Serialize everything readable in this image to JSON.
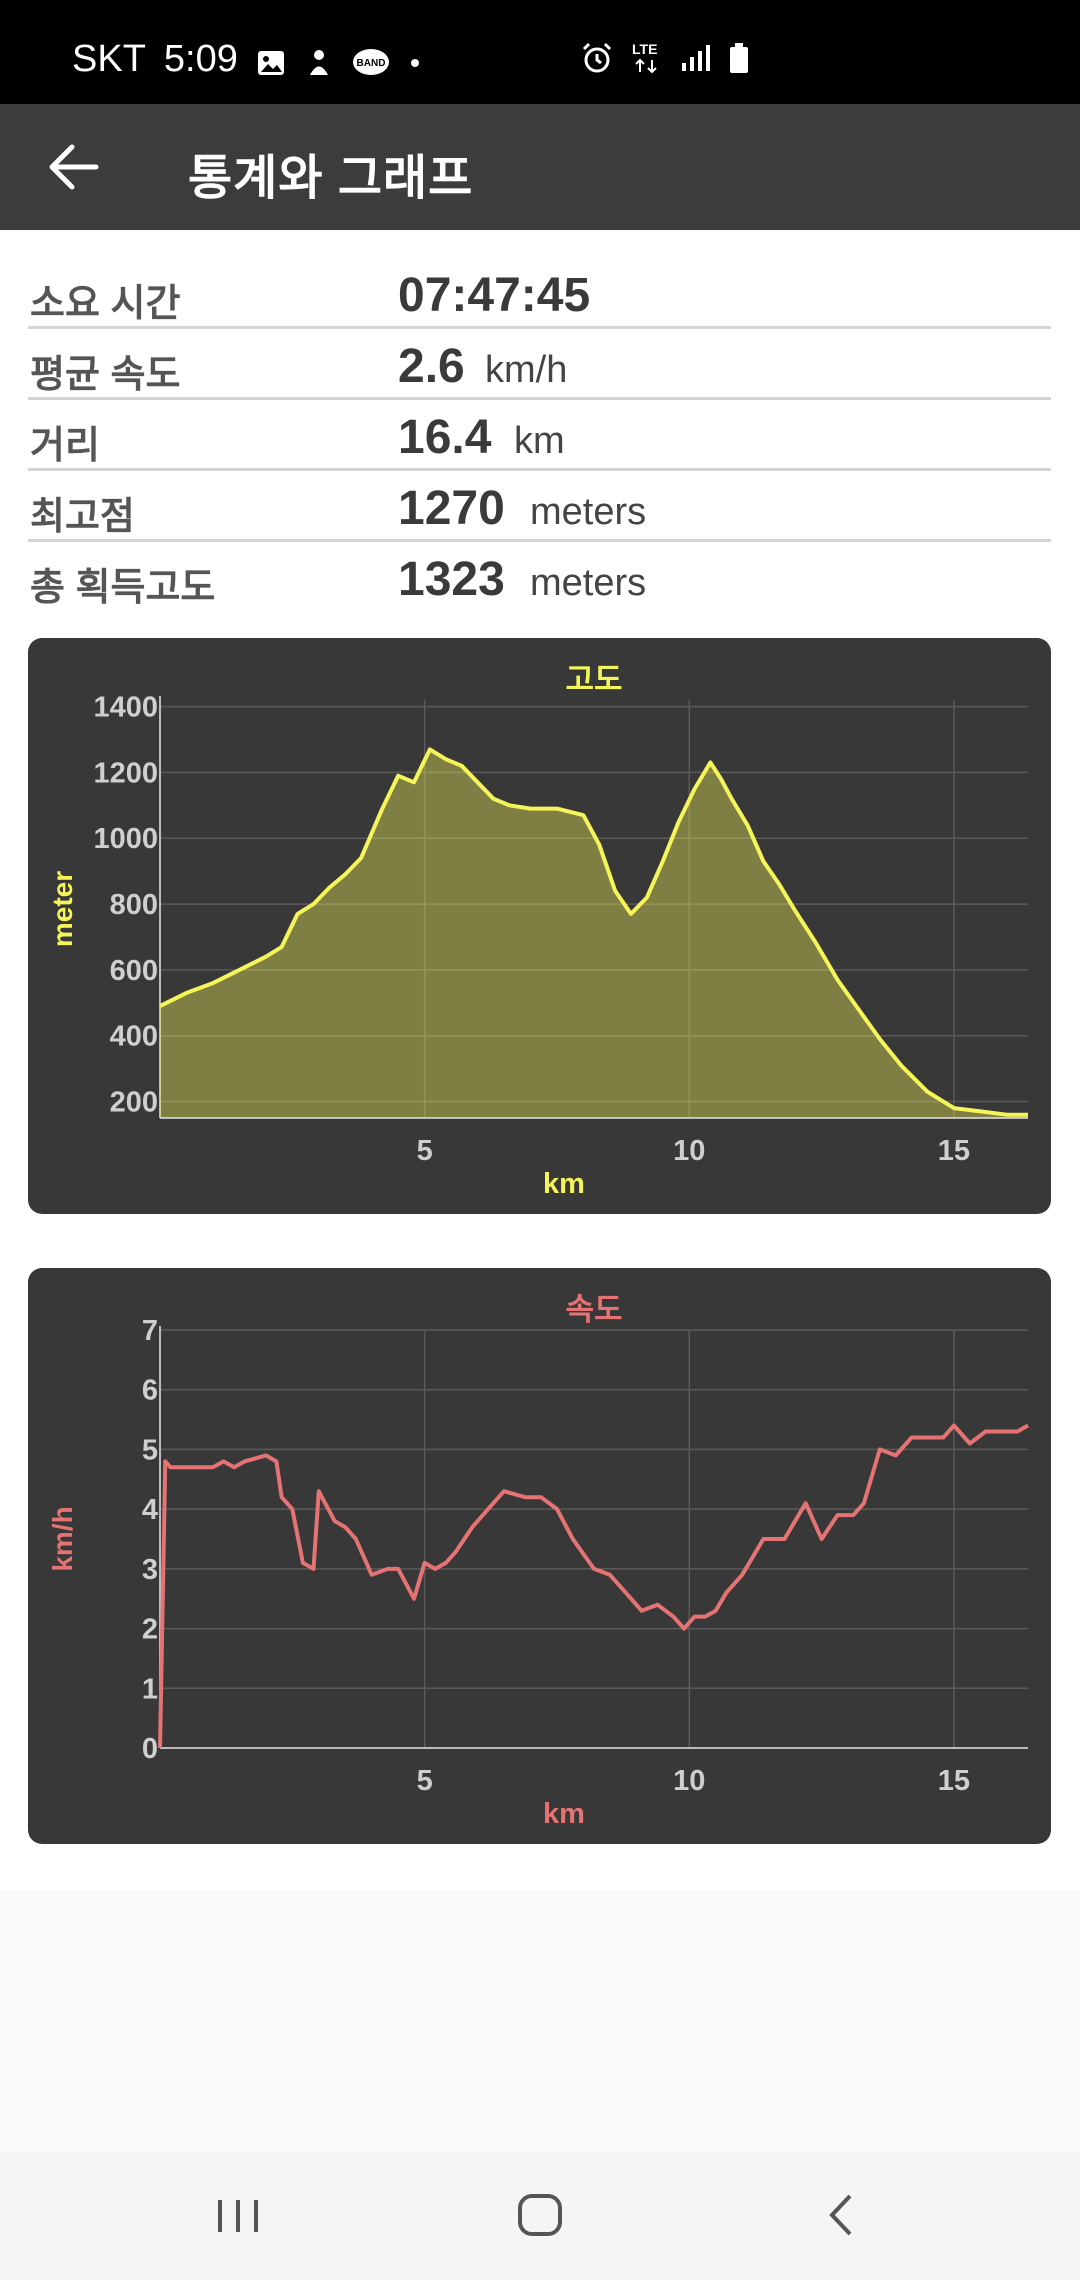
{
  "status_bar": {
    "carrier": "SKT",
    "time": "5:09",
    "icons_left": [
      "gallery-icon",
      "person-icon",
      "band-app-icon",
      "dot-icon"
    ],
    "icons_right": [
      "alarm-icon",
      "lte-icon",
      "signal-icon",
      "battery-icon"
    ]
  },
  "app_bar": {
    "title": "통계와 그래프",
    "back_icon": "arrow-left-icon"
  },
  "stats": [
    {
      "label": "소요 시간",
      "value": "07:47:45",
      "unit": ""
    },
    {
      "label": "평균 속도",
      "value": "2.6",
      "unit": "km/h"
    },
    {
      "label": "거리",
      "value": "16.4",
      "unit": "km"
    },
    {
      "label": "최고점",
      "value": "1270",
      "unit": "meters"
    },
    {
      "label": "총 획득고도",
      "value": "1323",
      "unit": "meters"
    }
  ],
  "colors": {
    "elevation": "#f5f55a",
    "speed": "#e57373",
    "card_bg": "#383838",
    "app_bar": "#3c3c3c"
  },
  "chart_data": [
    {
      "type": "area",
      "title": "고도",
      "xlabel": "km",
      "ylabel": "meter",
      "xlim": [
        0,
        16.4
      ],
      "ylim": [
        150,
        1420
      ],
      "x_ticks": [
        5,
        10,
        15
      ],
      "y_ticks": [
        200,
        400,
        600,
        800,
        1000,
        1200,
        1400
      ],
      "grid": true,
      "x": [
        0,
        0.5,
        1,
        1.5,
        2,
        2.3,
        2.6,
        2.9,
        3.2,
        3.5,
        3.8,
        4.2,
        4.5,
        4.8,
        5.1,
        5.4,
        5.7,
        6.0,
        6.3,
        6.6,
        7.0,
        7.5,
        8.0,
        8.3,
        8.6,
        8.9,
        9.2,
        9.5,
        9.8,
        10.1,
        10.4,
        10.6,
        10.8,
        11.1,
        11.4,
        11.7,
        12.0,
        12.4,
        12.8,
        13.2,
        13.6,
        14.0,
        14.5,
        15.0,
        15.5,
        16.0,
        16.4
      ],
      "y": [
        490,
        530,
        560,
        600,
        640,
        670,
        770,
        800,
        850,
        890,
        940,
        1090,
        1190,
        1170,
        1270,
        1240,
        1220,
        1170,
        1120,
        1100,
        1090,
        1090,
        1070,
        980,
        840,
        770,
        820,
        930,
        1050,
        1150,
        1230,
        1180,
        1120,
        1040,
        930,
        860,
        780,
        680,
        570,
        480,
        390,
        310,
        230,
        180,
        170,
        160,
        160
      ]
    },
    {
      "type": "line",
      "title": "속도",
      "xlabel": "km",
      "ylabel": "km/h",
      "xlim": [
        0,
        16.4
      ],
      "ylim": [
        0,
        7
      ],
      "x_ticks": [
        5,
        10,
        15
      ],
      "y_ticks": [
        0,
        1,
        2,
        3,
        4,
        5,
        6,
        7
      ],
      "grid": true,
      "x": [
        0,
        0.1,
        0.2,
        0.6,
        1.0,
        1.2,
        1.4,
        1.6,
        2.0,
        2.2,
        2.3,
        2.5,
        2.7,
        2.9,
        3.0,
        3.3,
        3.5,
        3.7,
        4.0,
        4.3,
        4.5,
        4.8,
        5.0,
        5.2,
        5.4,
        5.6,
        5.9,
        6.2,
        6.5,
        6.9,
        7.2,
        7.5,
        7.8,
        8.2,
        8.5,
        8.8,
        9.1,
        9.4,
        9.7,
        9.9,
        10.1,
        10.3,
        10.5,
        10.7,
        11.0,
        11.4,
        11.8,
        12.2,
        12.5,
        12.8,
        13.1,
        13.3,
        13.6,
        13.9,
        14.2,
        14.5,
        14.8,
        15.0,
        15.3,
        15.6,
        15.9,
        16.2,
        16.4
      ],
      "y": [
        0,
        4.8,
        4.7,
        4.7,
        4.7,
        4.8,
        4.7,
        4.8,
        4.9,
        4.8,
        4.2,
        4.0,
        3.1,
        3.0,
        4.3,
        3.8,
        3.7,
        3.5,
        2.9,
        3.0,
        3.0,
        2.5,
        3.1,
        3.0,
        3.1,
        3.3,
        3.7,
        4.0,
        4.3,
        4.2,
        4.2,
        4.0,
        3.5,
        3.0,
        2.9,
        2.6,
        2.3,
        2.4,
        2.2,
        2.0,
        2.2,
        2.2,
        2.3,
        2.6,
        2.9,
        3.5,
        3.5,
        4.1,
        3.5,
        3.9,
        3.9,
        4.1,
        5.0,
        4.9,
        5.2,
        5.2,
        5.2,
        5.4,
        5.1,
        5.3,
        5.3,
        5.3,
        5.4
      ]
    }
  ]
}
